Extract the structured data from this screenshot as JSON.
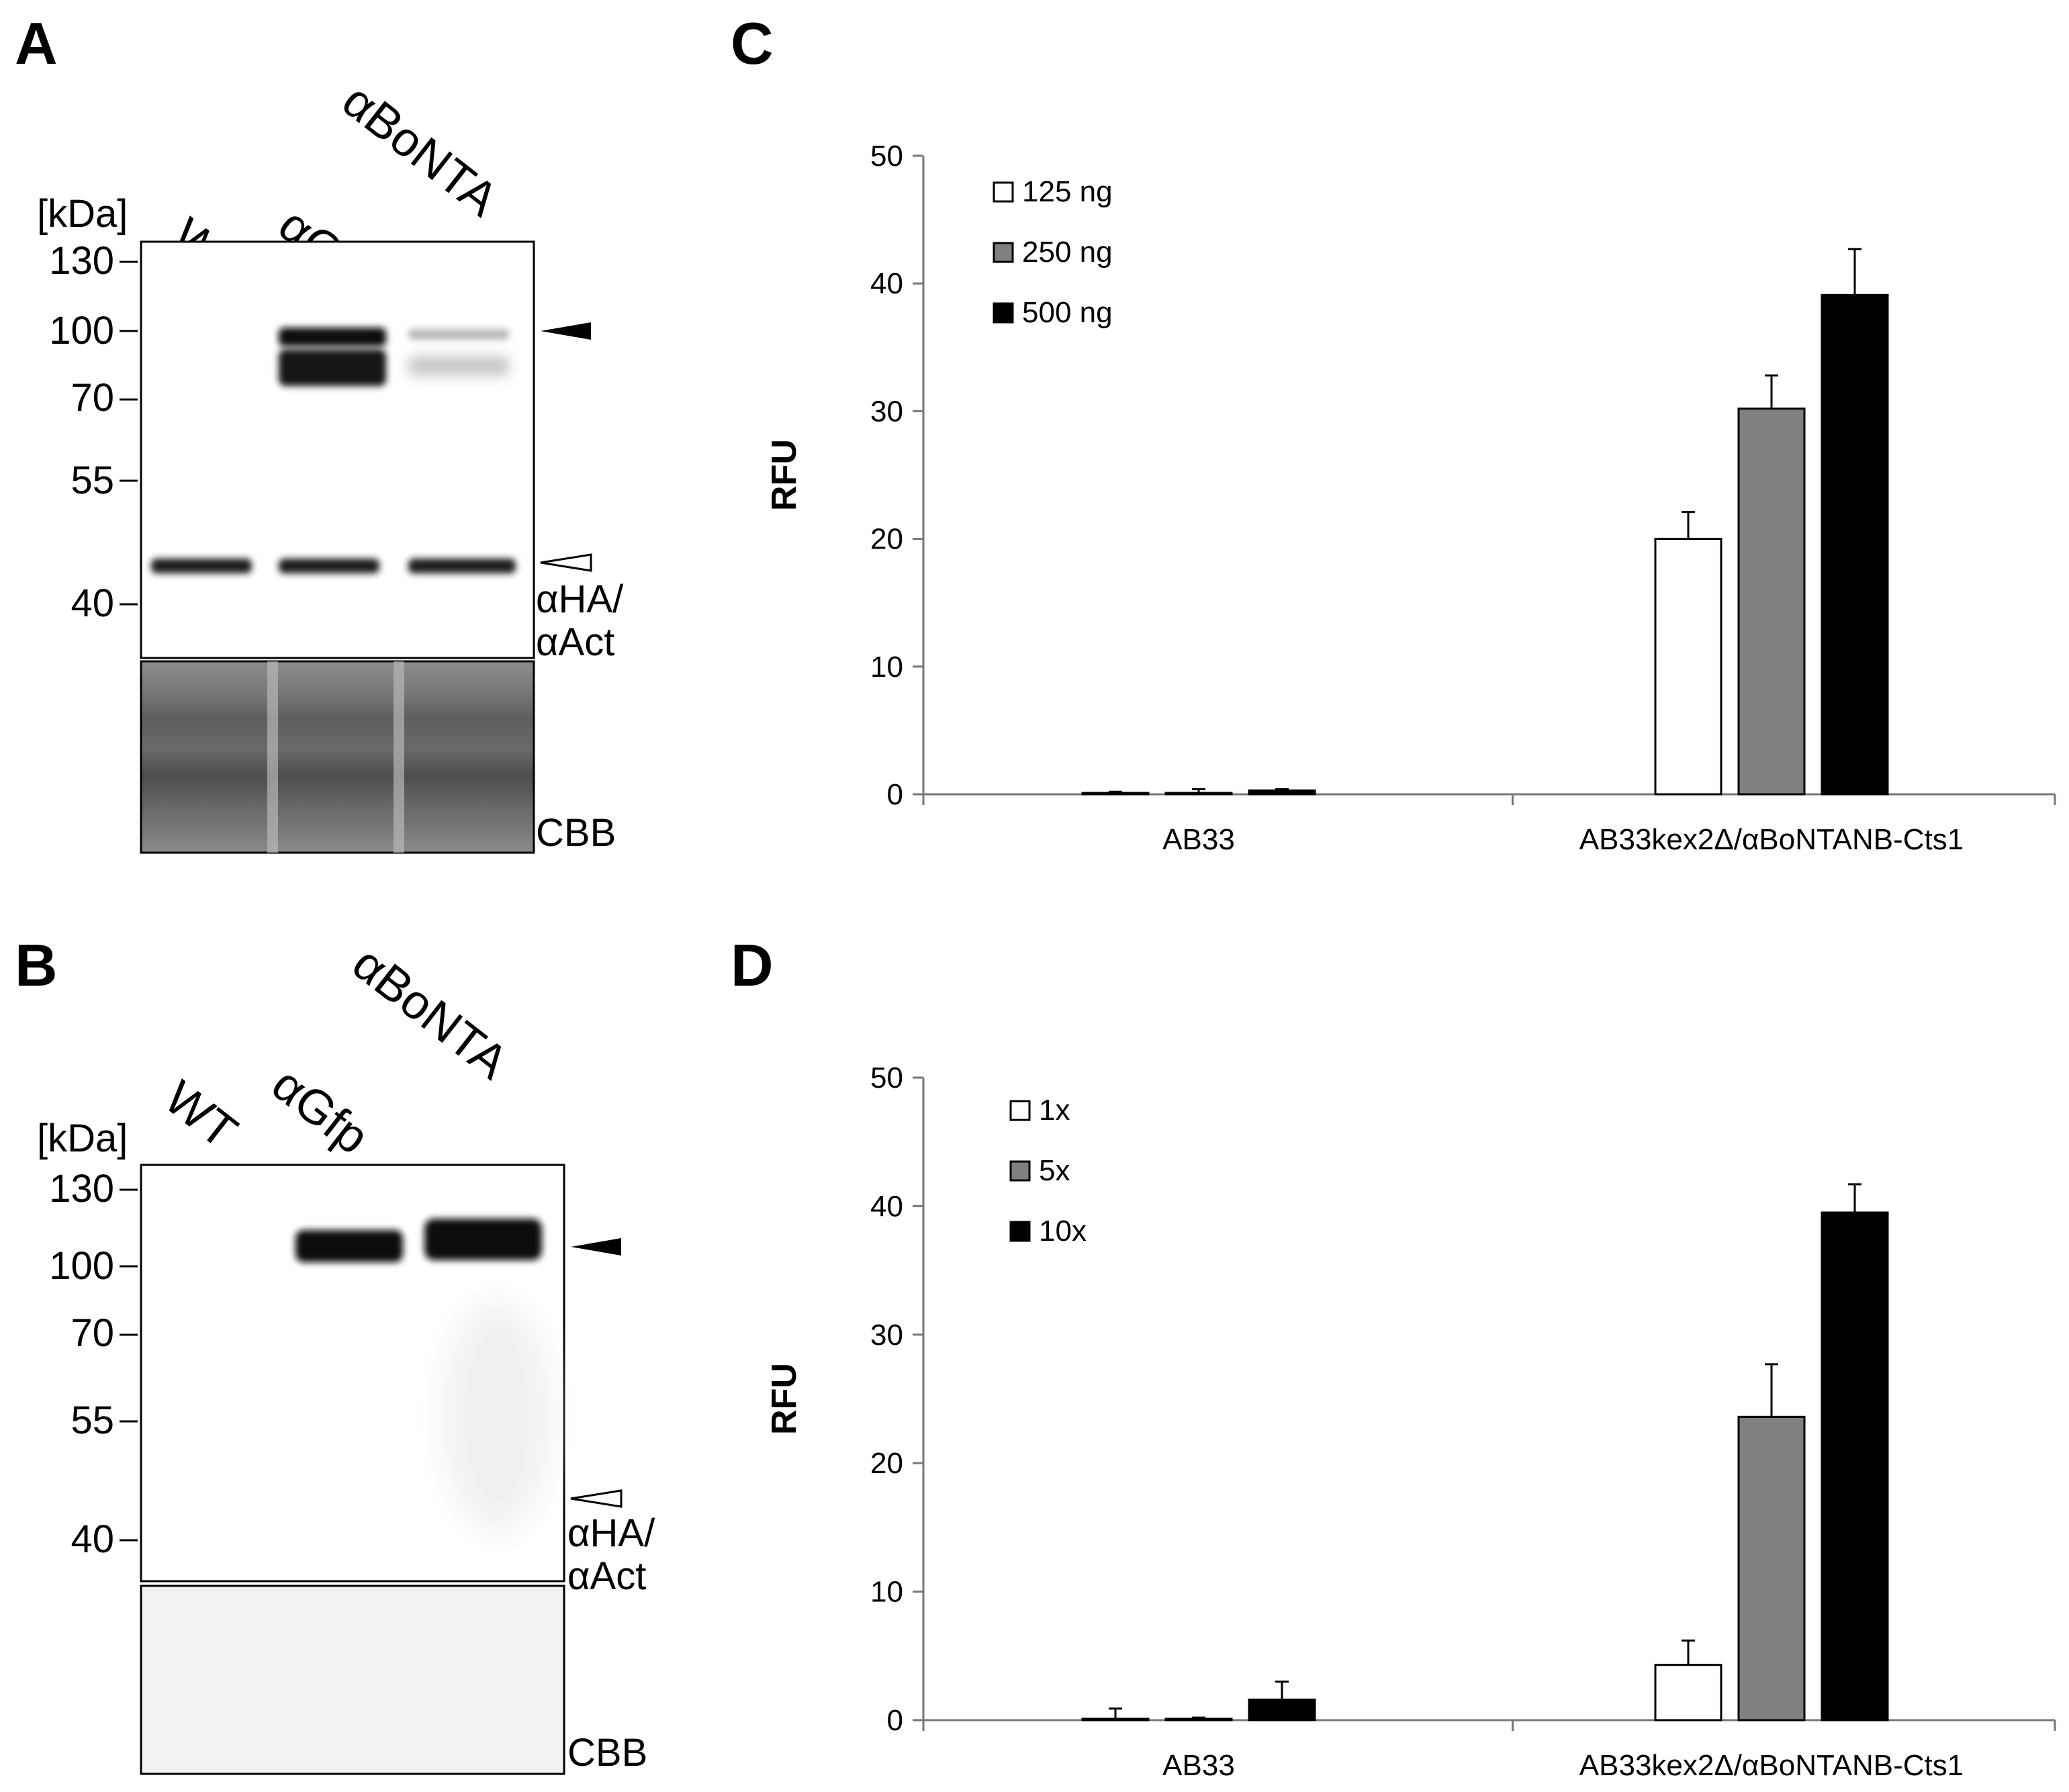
{
  "panels": {
    "A": {
      "letter": "A"
    },
    "B": {
      "letter": "B"
    },
    "C": {
      "letter": "C"
    },
    "D": {
      "letter": "D"
    }
  },
  "blots": [
    {
      "id": "A",
      "unit_label": "[kDa]",
      "lanes": [
        "WT",
        "αGfp",
        "αBoNTA"
      ],
      "markers": [
        "130",
        "100",
        "70",
        "55",
        "40"
      ],
      "antibody_label_1": "αHA/",
      "antibody_label_2": "αAct",
      "loading_label": "CBB"
    },
    {
      "id": "B",
      "unit_label": "[kDa]",
      "lanes": [
        "WT",
        "αGfp",
        "αBoNTA"
      ],
      "markers": [
        "130",
        "100",
        "70",
        "55",
        "40"
      ],
      "antibody_label_1": "αHA/",
      "antibody_label_2": "αAct",
      "loading_label": "CBB"
    }
  ],
  "chart_data": [
    {
      "panel": "C",
      "type": "bar",
      "categories": [
        "AB33",
        "AB33kex2Δ/αBoNTANB-Cts1"
      ],
      "ylabel": "RFU",
      "xlabel": "",
      "ylim": [
        0,
        50
      ],
      "yticks": [
        "0",
        "10",
        "20",
        "30",
        "40",
        "50"
      ],
      "legend_position": "top-left",
      "series": [
        {
          "name": "125 ng",
          "color": "#ffffff",
          "values": [
            0.1,
            20.0
          ],
          "errors": [
            0.1,
            2.1
          ]
        },
        {
          "name": "250 ng",
          "color": "#808080",
          "values": [
            0.1,
            30.2
          ],
          "errors": [
            0.3,
            2.6
          ]
        },
        {
          "name": "500 ng",
          "color": "#000000",
          "values": [
            0.3,
            39.1
          ],
          "errors": [
            0.1,
            3.6
          ]
        }
      ]
    },
    {
      "panel": "D",
      "type": "bar",
      "categories": [
        "AB33",
        "AB33kex2Δ/αBoNTANB-Cts1"
      ],
      "ylabel": "RFU",
      "xlabel": "",
      "ylim": [
        0,
        50
      ],
      "yticks": [
        "0",
        "10",
        "20",
        "30",
        "40",
        "50"
      ],
      "legend_position": "top-left",
      "series": [
        {
          "name": "1x",
          "color": "#ffffff",
          "values": [
            0.1,
            4.3
          ],
          "errors": [
            0.8,
            1.9
          ]
        },
        {
          "name": "5x",
          "color": "#808080",
          "values": [
            0.1,
            23.6
          ],
          "errors": [
            0.1,
            4.1
          ]
        },
        {
          "name": "10x",
          "color": "#000000",
          "values": [
            1.6,
            39.5
          ],
          "errors": [
            1.4,
            2.2
          ]
        }
      ]
    }
  ]
}
